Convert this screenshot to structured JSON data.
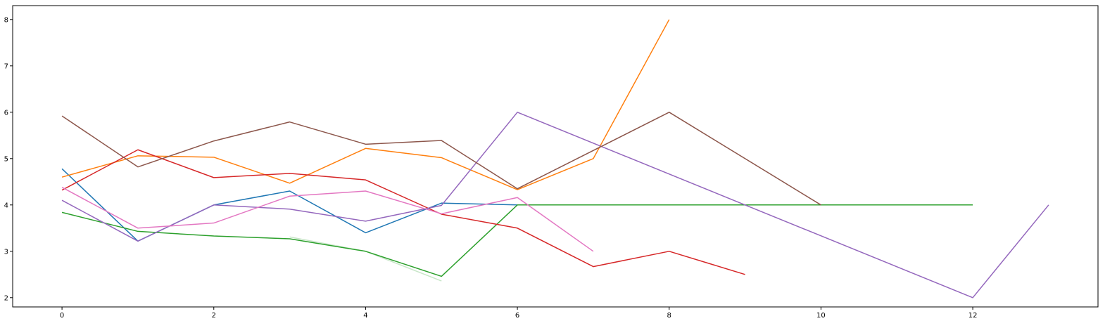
{
  "chart_data": {
    "type": "line",
    "title": "",
    "xlabel": "",
    "ylabel": "",
    "xlim": [
      -0.65,
      13.65
    ],
    "ylim": [
      1.8,
      8.3
    ],
    "xticks": [
      0,
      2,
      4,
      6,
      8,
      10,
      12
    ],
    "yticks": [
      2,
      3,
      4,
      5,
      6,
      7,
      8
    ],
    "grid": false,
    "legend": null,
    "series": [
      {
        "color": "#1f77b4",
        "x": [
          0,
          1,
          2,
          3,
          4,
          5,
          6
        ],
        "values": [
          4.78,
          3.22,
          4.0,
          4.3,
          3.4,
          4.04,
          4.0
        ]
      },
      {
        "color": "#ff7f0e",
        "x": [
          0,
          1,
          2,
          3,
          4,
          5,
          6,
          7,
          8
        ],
        "values": [
          4.6,
          5.06,
          5.03,
          4.47,
          5.22,
          5.02,
          4.33,
          5.0,
          8.0
        ]
      },
      {
        "color": "#2ca02c",
        "x": [
          0,
          1,
          2,
          3,
          4,
          5,
          6,
          7,
          8,
          9,
          10,
          11,
          12
        ],
        "values": [
          3.84,
          3.43,
          3.33,
          3.27,
          3.0,
          2.46,
          4.0,
          4.0,
          4.0,
          4.0,
          4.0,
          4.0,
          4.0
        ]
      },
      {
        "color": "#d62728",
        "x": [
          0,
          1,
          2,
          3,
          4,
          5,
          6,
          7,
          8,
          9
        ],
        "values": [
          4.32,
          5.19,
          4.59,
          4.68,
          4.54,
          3.8,
          3.5,
          2.67,
          3.0,
          2.5
        ]
      },
      {
        "color": "#9467bd",
        "x": [
          0,
          1,
          2,
          3,
          4,
          5,
          6,
          12,
          13
        ],
        "values": [
          4.1,
          3.22,
          4.0,
          3.91,
          3.65,
          3.99,
          6.0,
          2.0,
          4.0
        ]
      },
      {
        "color": "#8c564b",
        "x": [
          0,
          1,
          2,
          3,
          4,
          5,
          6,
          8,
          10
        ],
        "values": [
          5.92,
          4.82,
          5.38,
          5.79,
          5.31,
          5.39,
          4.35,
          6.0,
          4.0
        ]
      },
      {
        "color": "#e377c2",
        "x": [
          0,
          1,
          2,
          3,
          4,
          5,
          6,
          7
        ],
        "values": [
          4.38,
          3.5,
          3.61,
          4.19,
          4.3,
          3.81,
          4.16,
          3.0
        ]
      },
      {
        "color": "#c8e6c8",
        "x": [
          3,
          4,
          5
        ],
        "values": [
          3.31,
          3.0,
          2.36
        ]
      }
    ]
  }
}
